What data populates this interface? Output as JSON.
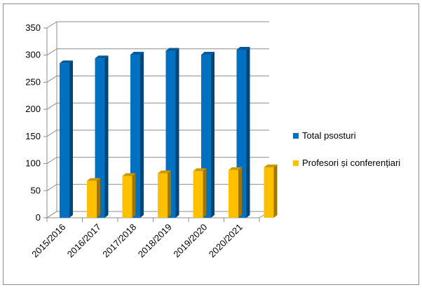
{
  "chart_data": {
    "type": "bar",
    "style": "3d-clustered-column",
    "categories": [
      "2015/2016",
      "2016/2017",
      "2017/2018",
      "2018/2019",
      "2019/2020",
      "2020/2021"
    ],
    "series": [
      {
        "name": "Total psosturi",
        "values": [
          285,
          294,
          301,
          308,
          301,
          310
        ],
        "color": "#0070C0"
      },
      {
        "name": "Profesori și conferențiari",
        "values": [
          68,
          77,
          82,
          86,
          88,
          93
        ],
        "color": "#FFC000"
      }
    ],
    "ylim": [
      0,
      350
    ],
    "yticks": [
      0,
      50,
      100,
      150,
      200,
      250,
      300,
      350
    ],
    "grid": true,
    "legend": "right"
  }
}
